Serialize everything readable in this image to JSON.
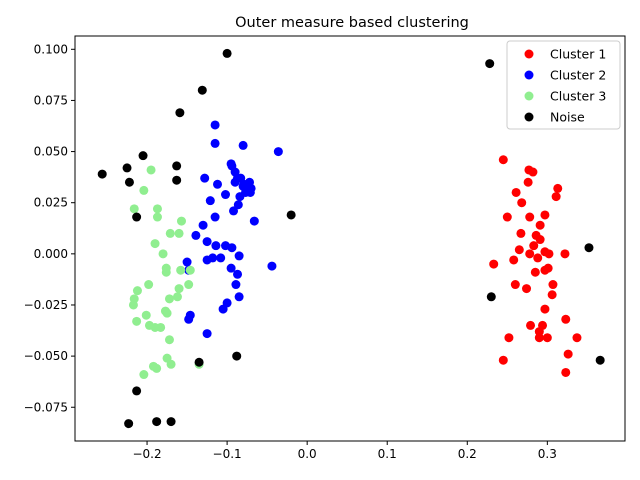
{
  "chart_data": {
    "type": "scatter",
    "title": "Outer measure based clustering",
    "xlabel": "",
    "ylabel": "",
    "xlim": [
      -0.29,
      0.397
    ],
    "ylim": [
      -0.0915,
      0.1065
    ],
    "x_ticks": [
      -0.2,
      -0.1,
      0.0,
      0.1,
      0.2,
      0.3
    ],
    "x_tick_labels": [
      "−0.2",
      "−0.1",
      "0.0",
      "0.1",
      "0.2",
      "0.3"
    ],
    "y_ticks": [
      -0.075,
      -0.05,
      -0.025,
      0.0,
      0.025,
      0.05,
      0.075,
      0.1
    ],
    "y_tick_labels": [
      "−0.075",
      "−0.050",
      "−0.025",
      "0.000",
      "0.025",
      "0.050",
      "0.075",
      "0.100"
    ],
    "grid": false,
    "legend_position": "top-right",
    "series": [
      {
        "name": "Cluster 1",
        "color": "#ff0000",
        "points": [
          [
            0.245,
            0.046
          ],
          [
            0.277,
            0.041
          ],
          [
            0.282,
            0.04
          ],
          [
            0.276,
            0.035
          ],
          [
            0.313,
            0.032
          ],
          [
            0.261,
            0.03
          ],
          [
            0.311,
            0.028
          ],
          [
            0.268,
            0.025
          ],
          [
            0.25,
            0.018
          ],
          [
            0.278,
            0.018
          ],
          [
            0.297,
            0.019
          ],
          [
            0.291,
            0.014
          ],
          [
            0.267,
            0.01
          ],
          [
            0.286,
            0.009
          ],
          [
            0.283,
            0.004
          ],
          [
            0.291,
            0.007
          ],
          [
            0.265,
            0.002
          ],
          [
            0.297,
            0.001
          ],
          [
            0.278,
            0.0
          ],
          [
            0.302,
            0.0
          ],
          [
            0.288,
            -0.002
          ],
          [
            0.322,
            0.0
          ],
          [
            0.258,
            -0.003
          ],
          [
            0.233,
            -0.005
          ],
          [
            0.301,
            -0.007
          ],
          [
            0.297,
            -0.008
          ],
          [
            0.285,
            -0.009
          ],
          [
            0.26,
            -0.015
          ],
          [
            0.274,
            -0.017
          ],
          [
            0.307,
            -0.015
          ],
          [
            0.306,
            -0.02
          ],
          [
            0.297,
            -0.027
          ],
          [
            0.323,
            -0.032
          ],
          [
            0.279,
            -0.035
          ],
          [
            0.294,
            -0.035
          ],
          [
            0.29,
            -0.038
          ],
          [
            0.252,
            -0.041
          ],
          [
            0.3,
            -0.041
          ],
          [
            0.29,
            -0.041
          ],
          [
            0.337,
            -0.041
          ],
          [
            0.326,
            -0.049
          ],
          [
            0.245,
            -0.052
          ],
          [
            0.323,
            -0.058
          ]
        ]
      },
      {
        "name": "Cluster 2",
        "color": "#0000ff",
        "points": [
          [
            -0.115,
            0.063
          ],
          [
            -0.115,
            0.054
          ],
          [
            -0.08,
            0.053
          ],
          [
            -0.036,
            0.05
          ],
          [
            -0.095,
            0.044
          ],
          [
            -0.094,
            0.043
          ],
          [
            -0.09,
            0.04
          ],
          [
            -0.087,
            0.037
          ],
          [
            -0.083,
            0.037
          ],
          [
            -0.128,
            0.037
          ],
          [
            -0.09,
            0.035
          ],
          [
            -0.079,
            0.034
          ],
          [
            -0.072,
            0.035
          ],
          [
            -0.112,
            0.034
          ],
          [
            -0.08,
            0.033
          ],
          [
            -0.07,
            0.032
          ],
          [
            -0.077,
            0.03
          ],
          [
            -0.071,
            0.03
          ],
          [
            -0.102,
            0.029
          ],
          [
            -0.084,
            0.028
          ],
          [
            -0.121,
            0.026
          ],
          [
            -0.086,
            0.024
          ],
          [
            -0.092,
            0.021
          ],
          [
            -0.115,
            0.018
          ],
          [
            -0.066,
            0.016
          ],
          [
            -0.13,
            0.014
          ],
          [
            -0.139,
            0.009
          ],
          [
            -0.125,
            0.006
          ],
          [
            -0.114,
            0.004
          ],
          [
            -0.102,
            0.004
          ],
          [
            -0.094,
            0.003
          ],
          [
            -0.118,
            -0.002
          ],
          [
            -0.125,
            -0.003
          ],
          [
            -0.108,
            -0.002
          ],
          [
            -0.085,
            -0.001
          ],
          [
            -0.15,
            -0.004
          ],
          [
            -0.148,
            -0.008
          ],
          [
            -0.095,
            -0.007
          ],
          [
            -0.044,
            -0.006
          ],
          [
            -0.087,
            -0.01
          ],
          [
            -0.089,
            -0.015
          ],
          [
            -0.105,
            -0.027
          ],
          [
            -0.1,
            -0.024
          ],
          [
            -0.085,
            -0.021
          ],
          [
            -0.146,
            -0.03
          ],
          [
            -0.148,
            -0.032
          ],
          [
            -0.125,
            -0.039
          ]
        ]
      },
      {
        "name": "Cluster 3",
        "color": "#90ee90",
        "points": [
          [
            -0.195,
            0.041
          ],
          [
            -0.204,
            0.031
          ],
          [
            -0.187,
            0.022
          ],
          [
            -0.216,
            0.022
          ],
          [
            -0.187,
            0.018
          ],
          [
            -0.157,
            0.016
          ],
          [
            -0.171,
            0.01
          ],
          [
            -0.16,
            0.01
          ],
          [
            -0.19,
            0.005
          ],
          [
            -0.18,
            0.0
          ],
          [
            -0.176,
            -0.007
          ],
          [
            -0.158,
            -0.008
          ],
          [
            -0.176,
            -0.009
          ],
          [
            -0.146,
            -0.008
          ],
          [
            -0.198,
            -0.015
          ],
          [
            -0.148,
            -0.015
          ],
          [
            -0.16,
            -0.017
          ],
          [
            -0.212,
            -0.018
          ],
          [
            -0.162,
            -0.021
          ],
          [
            -0.172,
            -0.022
          ],
          [
            -0.216,
            -0.022
          ],
          [
            -0.217,
            -0.025
          ],
          [
            -0.177,
            -0.028
          ],
          [
            -0.175,
            -0.029
          ],
          [
            -0.201,
            -0.03
          ],
          [
            -0.213,
            -0.033
          ],
          [
            -0.197,
            -0.035
          ],
          [
            -0.19,
            -0.036
          ],
          [
            -0.183,
            -0.036
          ],
          [
            -0.172,
            -0.042
          ],
          [
            -0.175,
            -0.051
          ],
          [
            -0.17,
            -0.054
          ],
          [
            -0.192,
            -0.055
          ],
          [
            -0.188,
            -0.056
          ],
          [
            -0.135,
            -0.054
          ],
          [
            -0.204,
            -0.059
          ]
        ]
      },
      {
        "name": "Noise",
        "color": "#000000",
        "points": [
          [
            -0.1,
            0.098
          ],
          [
            0.228,
            0.093
          ],
          [
            -0.131,
            0.08
          ],
          [
            -0.159,
            0.069
          ],
          [
            -0.205,
            0.048
          ],
          [
            -0.163,
            0.043
          ],
          [
            -0.225,
            0.042
          ],
          [
            -0.256,
            0.039
          ],
          [
            -0.163,
            0.036
          ],
          [
            -0.222,
            0.035
          ],
          [
            -0.02,
            0.019
          ],
          [
            -0.213,
            0.018
          ],
          [
            0.352,
            0.003
          ],
          [
            0.23,
            -0.021
          ],
          [
            -0.135,
            -0.053
          ],
          [
            -0.088,
            -0.05
          ],
          [
            0.366,
            -0.052
          ],
          [
            -0.213,
            -0.067
          ],
          [
            -0.17,
            -0.082
          ],
          [
            -0.188,
            -0.082
          ],
          [
            -0.223,
            -0.083
          ]
        ]
      }
    ]
  }
}
